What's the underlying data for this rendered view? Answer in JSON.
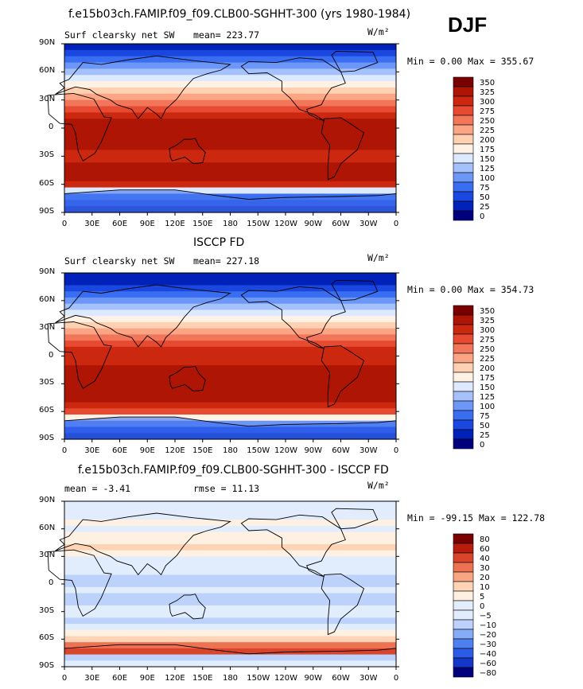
{
  "season": "DJF",
  "units": "W/m²",
  "colors": {
    "levels_sw": [
      "#00007f",
      "#0022b8",
      "#1a47e0",
      "#3a6ef2",
      "#6d97f7",
      "#a5c1fb",
      "#dde9fe",
      "#fff2e4",
      "#ffd0b1",
      "#fca585",
      "#f2765a",
      "#e64a30",
      "#cc2810",
      "#ae1504",
      "#7a0000"
    ],
    "levels_diff": [
      "#00007f",
      "#1337c8",
      "#2b5ce6",
      "#4f80f2",
      "#86abf7",
      "#bcd2fb",
      "#e1ecfd",
      "#fff1e2",
      "#ffd3b6",
      "#f8a583",
      "#ec7252",
      "#d8452b",
      "#b81c0c",
      "#7a0000"
    ],
    "land": "#b86a48",
    "coast": "#000000"
  },
  "chart_data": [
    {
      "type": "heatmap",
      "title": "f.e15b03ch.FAMIP.f09_f09.CLB00-SGHHT-300 (yrs 1980-1984)",
      "left_label": "Surf clearsky net SW",
      "stat_label": "mean= 223.77",
      "minmax_label": "Min =    0.00 Max = 355.67",
      "mean": 223.77,
      "min": 0.0,
      "max": 355.67,
      "y_ticks": [
        "90N",
        "60N",
        "30N",
        "0",
        "30S",
        "60S",
        "90S"
      ],
      "x_ticks": [
        "0",
        "30E",
        "60E",
        "90E",
        "120E",
        "150E",
        "180",
        "150W",
        "120W",
        "90W",
        "60W",
        "30W",
        "0"
      ],
      "colorbar_labels": [
        "350",
        "325",
        "300",
        "275",
        "250",
        "225",
        "200",
        "175",
        "150",
        "125",
        "100",
        "75",
        "50",
        "25",
        "0"
      ],
      "zonal_levels": [
        1,
        2,
        3,
        4,
        5,
        6,
        7,
        8,
        9,
        10,
        11,
        12,
        13,
        13,
        13,
        13,
        13,
        12,
        12,
        13,
        13,
        13,
        12,
        6,
        3,
        2,
        1
      ]
    },
    {
      "type": "heatmap",
      "title": "ISCCP FD",
      "left_label": "Surf clearsky net SW",
      "stat_label": "mean= 227.18",
      "minmax_label": "Min =    0.00 Max = 354.73",
      "mean": 227.18,
      "min": 0.0,
      "max": 354.73,
      "y_ticks": [
        "90N",
        "60N",
        "30N",
        "0",
        "30S",
        "60S",
        "90S"
      ],
      "x_ticks": [
        "0",
        "30E",
        "60E",
        "90E",
        "120E",
        "150E",
        "180",
        "150W",
        "120W",
        "90W",
        "60W",
        "30W",
        "0"
      ],
      "colorbar_labels": [
        "350",
        "325",
        "300",
        "275",
        "250",
        "225",
        "200",
        "175",
        "150",
        "125",
        "100",
        "75",
        "50",
        "25",
        "0"
      ],
      "zonal_levels": [
        1,
        1,
        2,
        3,
        4,
        5,
        6,
        7,
        8,
        9,
        10,
        11,
        12,
        12,
        12,
        13,
        13,
        13,
        13,
        13,
        13,
        12,
        11,
        7,
        4,
        2,
        1
      ]
    },
    {
      "type": "heatmap",
      "title": "f.e15b03ch.FAMIP.f09_f09.CLB00-SGHHT-300 - ISCCP FD",
      "left_label": "mean =   -3.41",
      "stat_label": "rmse =   11.13",
      "minmax_label": "Min = -99.15 Max = 122.78",
      "mean": -3.41,
      "rmse": 11.13,
      "min": -99.15,
      "max": 122.78,
      "y_ticks": [
        "90N",
        "60N",
        "30N",
        "0",
        "30S",
        "60S",
        "90S"
      ],
      "x_ticks": [
        "0",
        "30E",
        "60E",
        "90E",
        "120E",
        "150E",
        "180",
        "150W",
        "120W",
        "90W",
        "60W",
        "30W",
        "0"
      ],
      "colorbar_labels": [
        "80",
        "60",
        "40",
        "30",
        "20",
        "10",
        "5",
        "0",
        "−5",
        "−10",
        "−20",
        "−30",
        "−40",
        "−60",
        "−80"
      ],
      "zonal_levels": [
        6,
        6,
        6,
        7,
        6,
        7,
        7,
        8,
        7,
        6,
        6,
        6,
        5,
        5,
        6,
        5,
        5,
        6,
        6,
        5,
        6,
        7,
        8,
        10,
        11,
        5,
        6
      ]
    }
  ]
}
